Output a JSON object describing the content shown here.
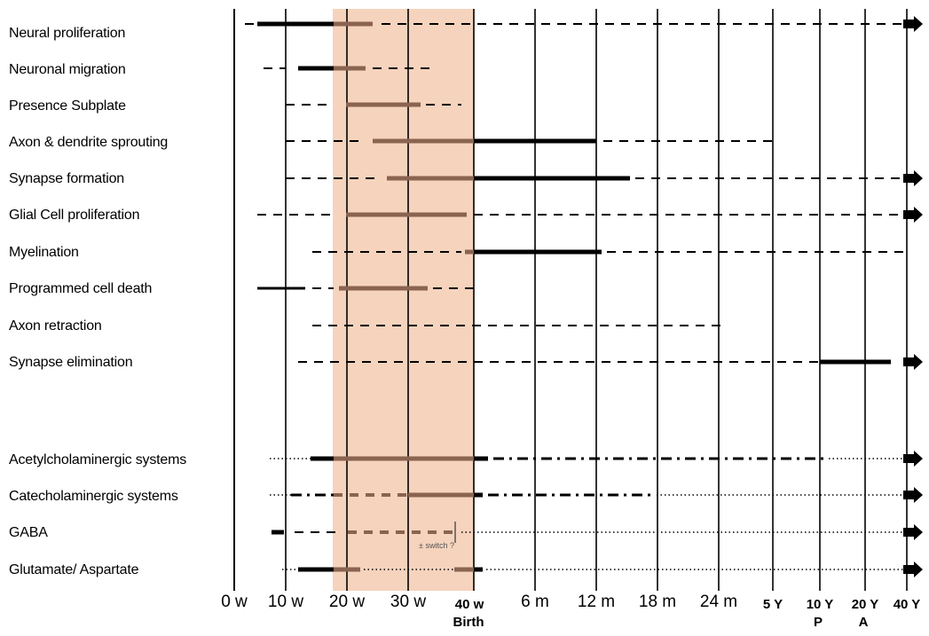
{
  "rows": [
    {
      "label": "Neural proliferation"
    },
    {
      "label": "Neuronal migration"
    },
    {
      "label": "Presence Subplate"
    },
    {
      "label": "Axon & dendrite sprouting"
    },
    {
      "label": "Synapse formation"
    },
    {
      "label": "Glial Cell proliferation"
    },
    {
      "label": "Myelination"
    },
    {
      "label": "Programmed cell death"
    },
    {
      "label": "Axon retraction"
    },
    {
      "label": "Synapse elimination"
    },
    {
      "label": "Acetylcholaminergic systems"
    },
    {
      "label": "Catecholaminergic systems"
    },
    {
      "label": "GABA"
    },
    {
      "label": "Glutamate/ Aspartate"
    }
  ],
  "axis": {
    "ticks": [
      {
        "label": "0 w",
        "small": false
      },
      {
        "label": "10 w",
        "small": false
      },
      {
        "label": "20 w",
        "small": false
      },
      {
        "label": "30 w",
        "small": false
      },
      {
        "label": "40 w",
        "small": true
      },
      {
        "label": "6 m",
        "small": false
      },
      {
        "label": "12 m",
        "small": false
      },
      {
        "label": "18 m",
        "small": false
      },
      {
        "label": "24 m",
        "small": false
      },
      {
        "label": "5 Y",
        "small": true
      },
      {
        "label": "10 Y",
        "small": true
      },
      {
        "label": "20 Y",
        "small": true
      },
      {
        "label": "40 Y",
        "small": true
      }
    ],
    "sublabels": {
      "birth": "Birth",
      "puberty": "P",
      "adulthood": "A"
    }
  },
  "annotation": {
    "gaba_switch": "± switch ?"
  },
  "colors": {
    "highlight_band": "#f6d3bd",
    "bar_in_band": "#8a6450",
    "bar": "#000000",
    "grid": "#000000"
  }
}
